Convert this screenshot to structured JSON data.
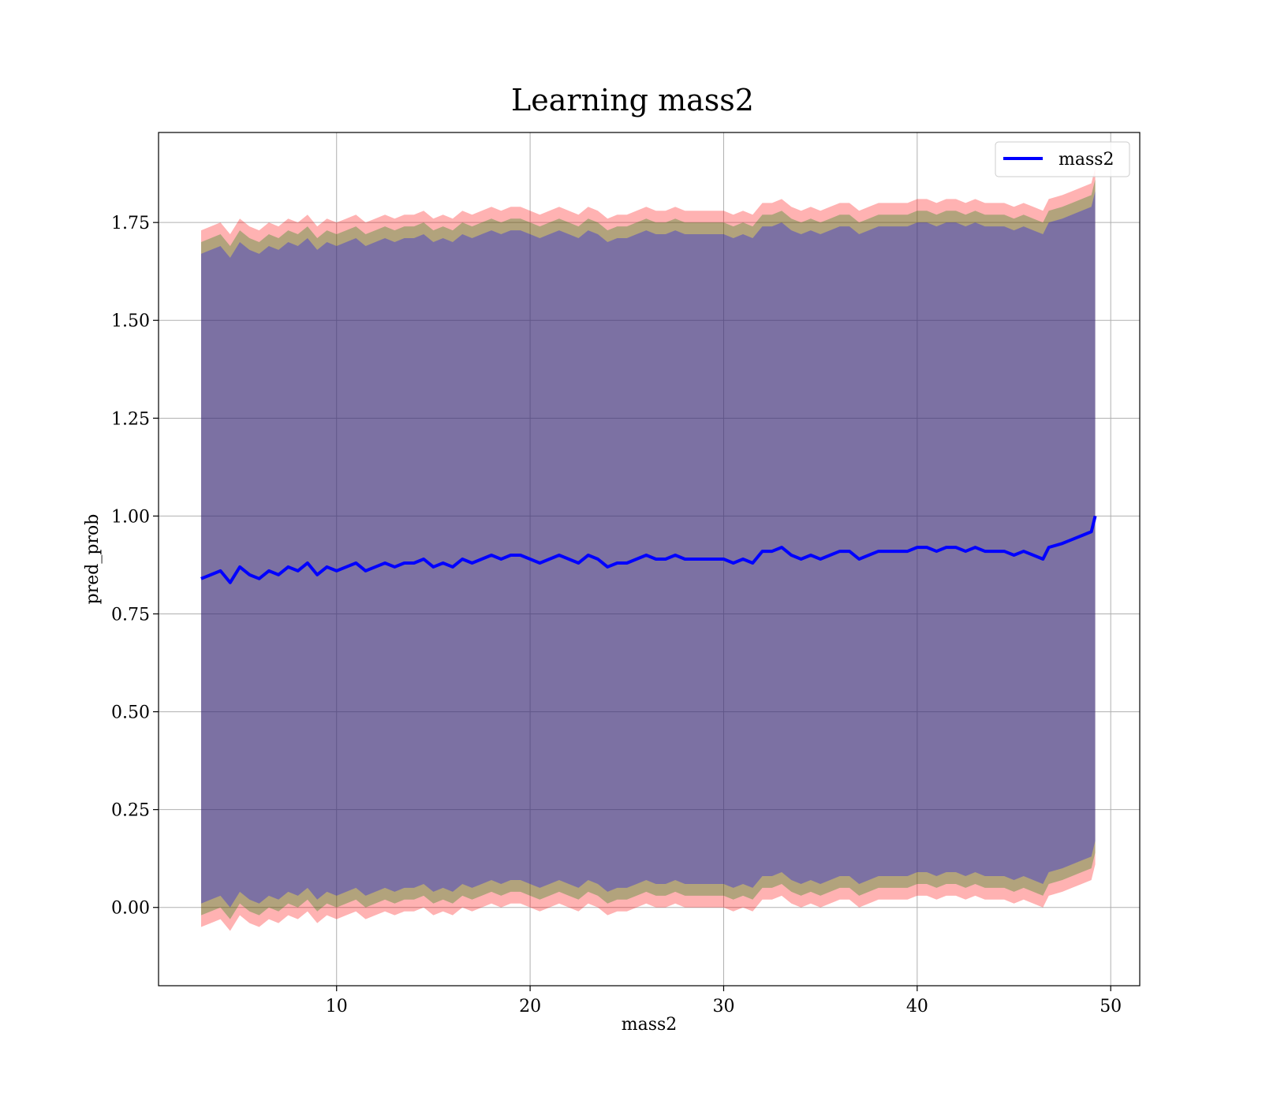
{
  "chart_data": {
    "type": "line",
    "title": "Learning mass2",
    "xlabel": "mass2",
    "ylabel": "pred_prob",
    "xlim": [
      0.8,
      51.5
    ],
    "ylim": [
      -0.2,
      1.98
    ],
    "xticks": [
      10,
      20,
      30,
      40,
      50
    ],
    "xtick_labels": [
      "10",
      "20",
      "30",
      "40",
      "50"
    ],
    "yticks": [
      0.0,
      0.25,
      0.5,
      0.75,
      1.0,
      1.25,
      1.5,
      1.75
    ],
    "ytick_labels": [
      "0.00",
      "0.25",
      "0.50",
      "0.75",
      "1.00",
      "1.25",
      "1.50",
      "1.75"
    ],
    "grid": true,
    "legend_position": "top-right",
    "series": [
      {
        "name": "mass2",
        "color": "#0000ff",
        "x": [
          3.0,
          3.5,
          4.0,
          4.5,
          5.0,
          5.5,
          6.0,
          6.5,
          7.0,
          7.5,
          8.0,
          8.5,
          9.0,
          9.5,
          10.0,
          10.5,
          11.0,
          11.5,
          12.0,
          12.5,
          13.0,
          13.5,
          14.0,
          14.5,
          15.0,
          15.5,
          16.0,
          16.5,
          17.0,
          17.5,
          18.0,
          18.5,
          19.0,
          19.5,
          20.0,
          20.5,
          21.0,
          21.5,
          22.0,
          22.5,
          23.0,
          23.5,
          24.0,
          24.5,
          25.0,
          25.5,
          26.0,
          26.5,
          27.0,
          27.5,
          28.0,
          28.5,
          29.0,
          29.5,
          30.0,
          30.5,
          31.0,
          31.5,
          32.0,
          32.5,
          33.0,
          33.5,
          34.0,
          34.5,
          35.0,
          35.5,
          36.0,
          36.5,
          37.0,
          37.5,
          38.0,
          38.5,
          39.0,
          39.5,
          40.0,
          40.5,
          41.0,
          41.5,
          42.0,
          42.5,
          43.0,
          43.5,
          44.0,
          44.5,
          45.0,
          45.5,
          46.0,
          46.5,
          46.8,
          47.5,
          48.0,
          48.5,
          49.0,
          49.2
        ],
        "y": [
          0.84,
          0.85,
          0.86,
          0.83,
          0.87,
          0.85,
          0.84,
          0.86,
          0.85,
          0.87,
          0.86,
          0.88,
          0.85,
          0.87,
          0.86,
          0.87,
          0.88,
          0.86,
          0.87,
          0.88,
          0.87,
          0.88,
          0.88,
          0.89,
          0.87,
          0.88,
          0.87,
          0.89,
          0.88,
          0.89,
          0.9,
          0.89,
          0.9,
          0.9,
          0.89,
          0.88,
          0.89,
          0.9,
          0.89,
          0.88,
          0.9,
          0.89,
          0.87,
          0.88,
          0.88,
          0.89,
          0.9,
          0.89,
          0.89,
          0.9,
          0.89,
          0.89,
          0.89,
          0.89,
          0.89,
          0.88,
          0.89,
          0.88,
          0.91,
          0.91,
          0.92,
          0.9,
          0.89,
          0.9,
          0.89,
          0.9,
          0.91,
          0.91,
          0.89,
          0.9,
          0.91,
          0.91,
          0.91,
          0.91,
          0.92,
          0.92,
          0.91,
          0.92,
          0.92,
          0.91,
          0.92,
          0.91,
          0.91,
          0.91,
          0.9,
          0.91,
          0.9,
          0.89,
          0.92,
          0.93,
          0.94,
          0.95,
          0.96,
          1.0
        ]
      }
    ],
    "bands": [
      {
        "color": "#ff0000",
        "opacity": 0.3,
        "upper_offset": 0.89,
        "lower_offset": -0.89
      },
      {
        "color": "#008000",
        "opacity": 0.3,
        "upper_offset": 0.86,
        "lower_offset": -0.86
      },
      {
        "color": "#0000ff",
        "opacity": 0.3,
        "upper_offset": 0.83,
        "lower_offset": -0.83
      }
    ]
  }
}
